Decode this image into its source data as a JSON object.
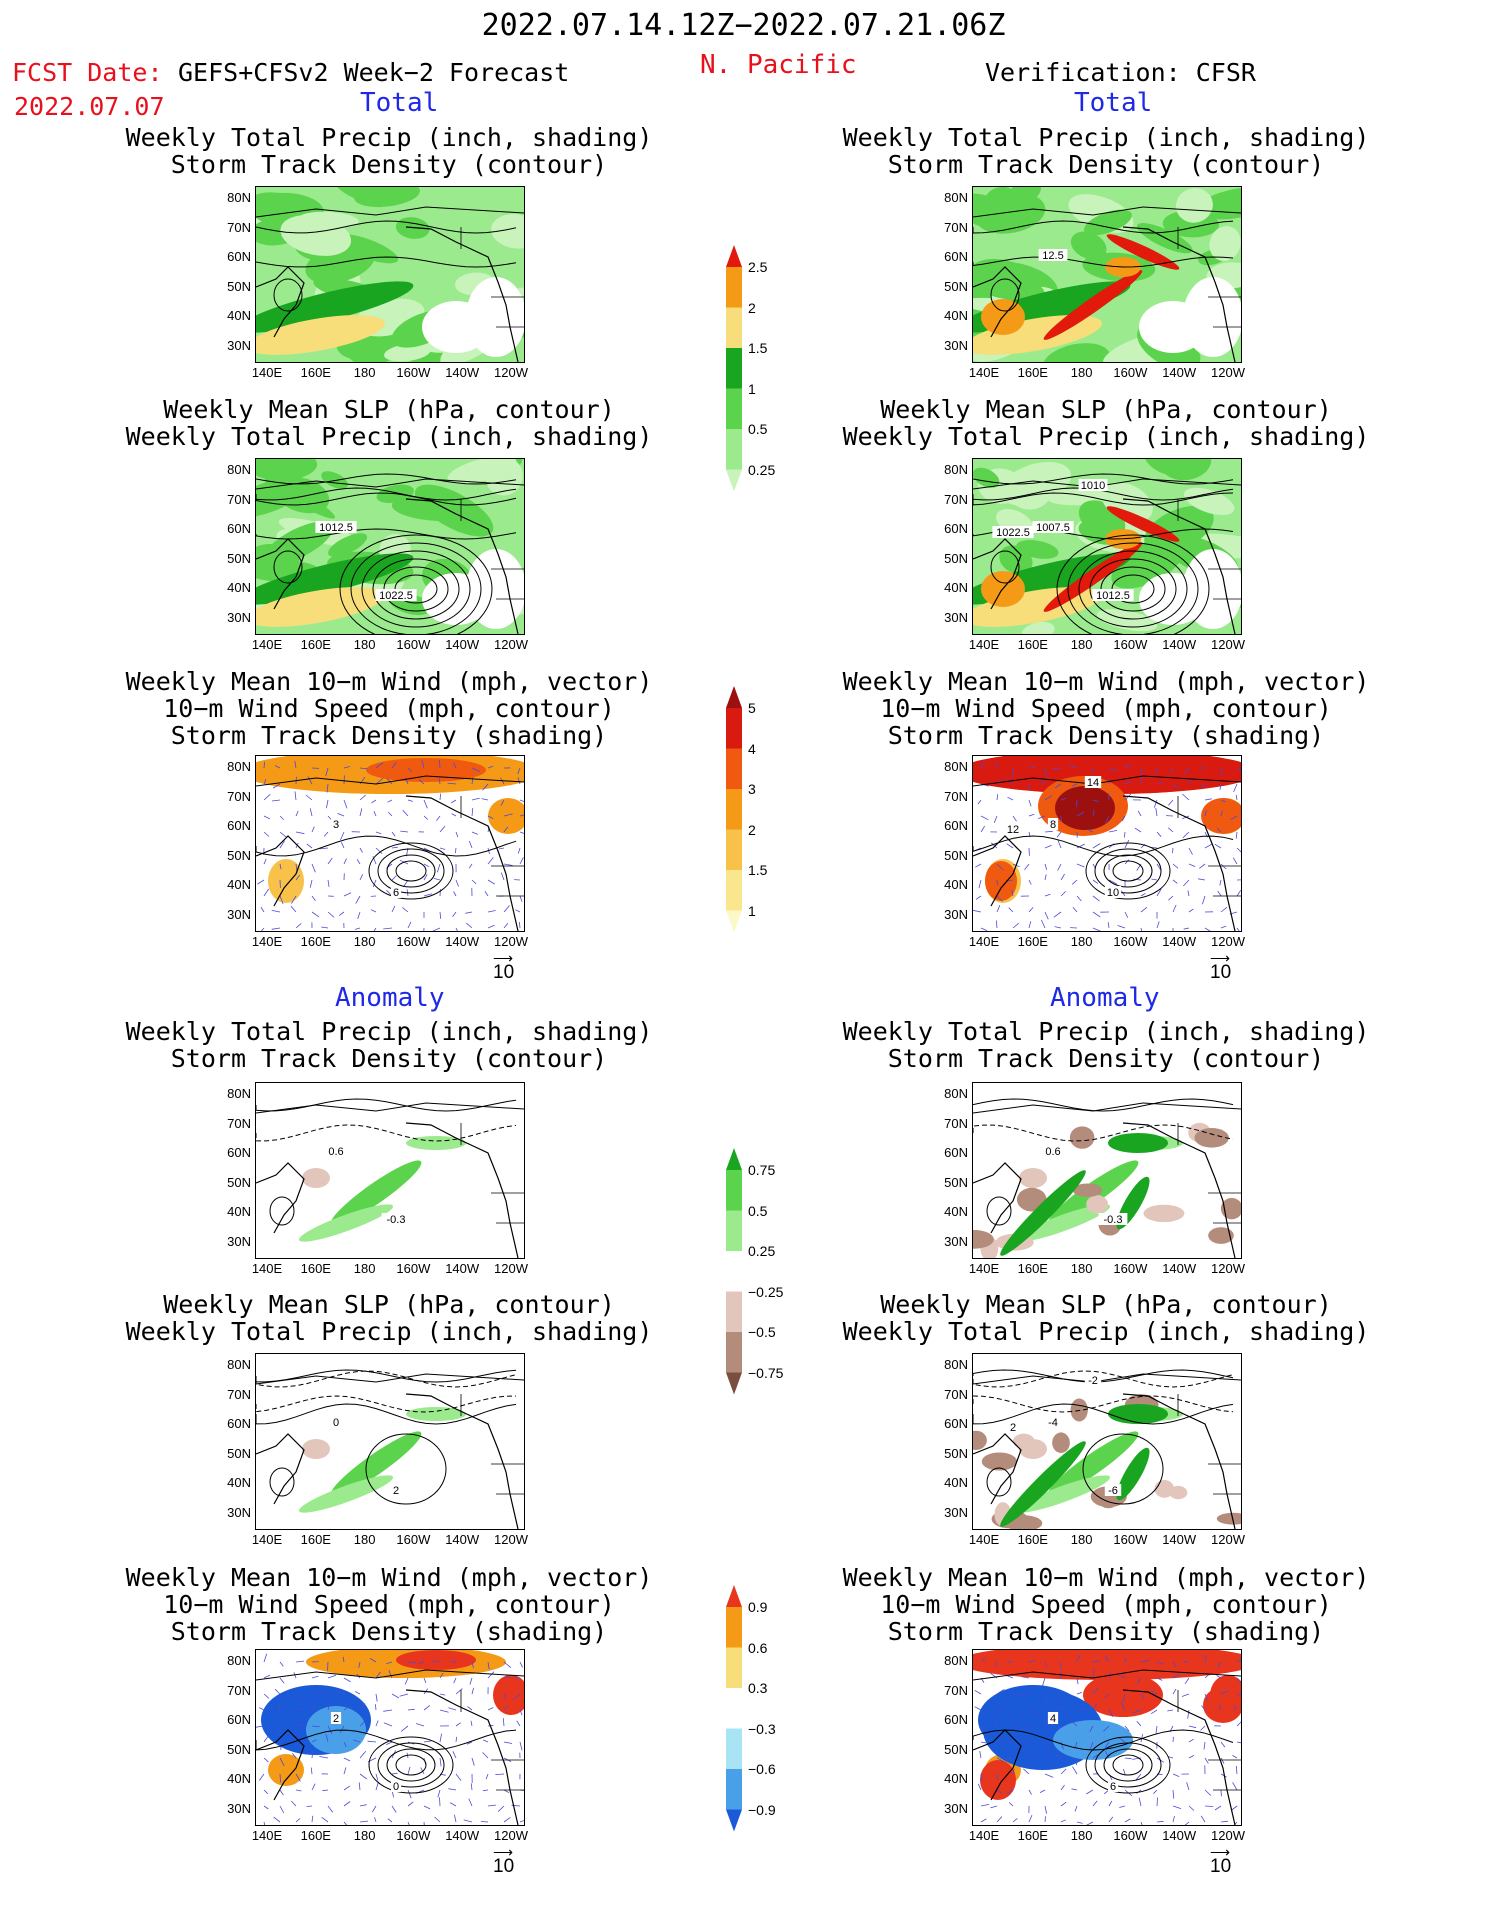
{
  "header": {
    "date_range": "2022.07.14.12Z−2022.07.21.06Z",
    "fcst_prefix": "FCST Date:",
    "fcst_model": "GEFS+CFSv2 Week−2 Forecast",
    "fcst_date": "2022.07.07",
    "region": "N. Pacific",
    "verification": "Verification: CFSR"
  },
  "section_labels": {
    "total": "Total",
    "anomaly": "Anomaly"
  },
  "panel_titles": {
    "precip_storm": [
      "Weekly Total Precip (inch, shading)",
      "Storm Track Density (contour)"
    ],
    "slp_precip": [
      "Weekly Mean SLP (hPa, contour)",
      "Weekly Total Precip (inch, shading)"
    ],
    "wind_storm": [
      "Weekly Mean 10−m Wind (mph, vector)",
      "10−m Wind Speed (mph, contour)",
      "Storm Track Density (shading)"
    ]
  },
  "axes": {
    "lat_ticks": [
      "80N",
      "70N",
      "60N",
      "50N",
      "40N",
      "30N"
    ],
    "lon_ticks": [
      "140E",
      "160E",
      "180",
      "160W",
      "140W",
      "120W"
    ]
  },
  "vector_ref": "10",
  "contour_labels": {
    "f_slp_total": [
      "1012.5",
      "1022.5"
    ],
    "o_slp_total": [
      "1007.5",
      "1012.5",
      "1010",
      "1022.5"
    ],
    "o_precip_total": [
      "12.5"
    ],
    "f_wind_total": [
      "3",
      "6"
    ],
    "o_wind_total": [
      "8",
      "10",
      "14",
      "12"
    ],
    "f_precip_anom": [
      "0.6",
      "-0.3"
    ],
    "o_precip_anom": [
      "0.6",
      "-0.3"
    ],
    "f_slp_anom": [
      "0",
      "2"
    ],
    "o_slp_anom": [
      "-4",
      "-6",
      "-2",
      "2"
    ],
    "f_wind_anom": [
      "2",
      "0"
    ],
    "o_wind_anom": [
      "4",
      "6"
    ]
  },
  "colorbars": {
    "precip_total": {
      "levels": [
        "2.5",
        "2",
        "1.5",
        "1",
        "0.5",
        "0.25"
      ],
      "colors": [
        "#e11a0c",
        "#f59a16",
        "#f8de7a",
        "#1aa520",
        "#5cd34c",
        "#9cea8e",
        "#c8f4bc"
      ]
    },
    "storm_total": {
      "levels": [
        "5",
        "4",
        "3",
        "2",
        "1.5",
        "1"
      ],
      "colors": [
        "#9c1010",
        "#d81a10",
        "#f05a10",
        "#f59a16",
        "#f8c24a",
        "#fae68c",
        "#fdf8c8"
      ]
    },
    "precip_anom": {
      "levels": [
        "0.75",
        "0.5",
        "0.25",
        "−0.25",
        "−0.5",
        "−0.75"
      ],
      "colors": [
        "#1aa520",
        "#5cd34c",
        "#9cea8e",
        "#ffffff",
        "#e2c6bc",
        "#b48c7c",
        "#7a4e3e"
      ]
    },
    "storm_anom": {
      "levels": [
        "0.9",
        "0.6",
        "0.3",
        "−0.3",
        "−0.6",
        "−0.9"
      ],
      "colors": [
        "#e8361e",
        "#f59a16",
        "#f8de7a",
        "#ffffff",
        "#a8e4f4",
        "#4aa0e8",
        "#1a5ad8"
      ]
    }
  },
  "chart_data": [
    {
      "panel": "forecast-total-precip-storm-track",
      "type": "heatmap",
      "title": "Weekly Total Precip (inch, shading) / Storm Track Density (contour)",
      "x_range": [
        "140E",
        "120W"
      ],
      "y_range": [
        "30N",
        "80N"
      ]
    },
    {
      "panel": "forecast-total-slp-precip",
      "type": "heatmap",
      "title": "Weekly Mean SLP (hPa, contour) / Weekly Total Precip (inch, shading)",
      "x_range": [
        "140E",
        "120W"
      ],
      "y_range": [
        "30N",
        "80N"
      ]
    },
    {
      "panel": "forecast-total-wind-storm",
      "type": "heatmap",
      "title": "Weekly Mean 10−m Wind / 10−m Wind Speed / Storm Track Density",
      "x_range": [
        "140E",
        "120W"
      ],
      "y_range": [
        "30N",
        "80N"
      ]
    },
    {
      "panel": "forecast-anomaly-precip-storm-track",
      "type": "heatmap",
      "x_range": [
        "140E",
        "120W"
      ],
      "y_range": [
        "30N",
        "80N"
      ]
    },
    {
      "panel": "forecast-anomaly-slp-precip",
      "type": "heatmap",
      "x_range": [
        "140E",
        "120W"
      ],
      "y_range": [
        "30N",
        "80N"
      ]
    },
    {
      "panel": "forecast-anomaly-wind-storm",
      "type": "heatmap",
      "x_range": [
        "140E",
        "120W"
      ],
      "y_range": [
        "30N",
        "80N"
      ]
    },
    {
      "panel": "verification-total-precip-storm-track",
      "type": "heatmap",
      "x_range": [
        "140E",
        "120W"
      ],
      "y_range": [
        "30N",
        "80N"
      ]
    },
    {
      "panel": "verification-total-slp-precip",
      "type": "heatmap",
      "x_range": [
        "140E",
        "120W"
      ],
      "y_range": [
        "30N",
        "80N"
      ]
    },
    {
      "panel": "verification-total-wind-storm",
      "type": "heatmap",
      "x_range": [
        "140E",
        "120W"
      ],
      "y_range": [
        "30N",
        "80N"
      ]
    },
    {
      "panel": "verification-anomaly-precip-storm-track",
      "type": "heatmap",
      "x_range": [
        "140E",
        "120W"
      ],
      "y_range": [
        "30N",
        "80N"
      ]
    },
    {
      "panel": "verification-anomaly-slp-precip",
      "type": "heatmap",
      "x_range": [
        "140E",
        "120W"
      ],
      "y_range": [
        "30N",
        "80N"
      ]
    },
    {
      "panel": "verification-anomaly-wind-storm",
      "type": "heatmap",
      "x_range": [
        "140E",
        "120W"
      ],
      "y_range": [
        "30N",
        "80N"
      ]
    }
  ]
}
